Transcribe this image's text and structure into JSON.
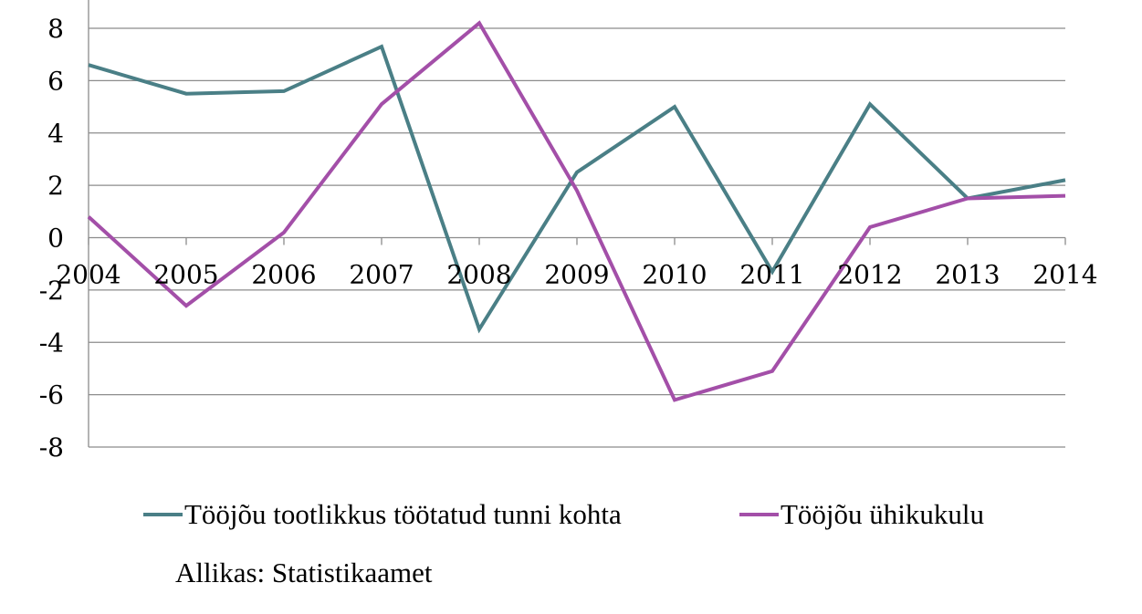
{
  "chart_data": {
    "type": "line",
    "title": "",
    "xlabel": "",
    "ylabel": "",
    "x": [
      "2004",
      "2005",
      "2006",
      "2007",
      "2008",
      "2009",
      "2010",
      "2011",
      "2012",
      "2013",
      "2014"
    ],
    "ylim": [
      -8,
      8
    ],
    "yticks": [
      8,
      6,
      4,
      2,
      0,
      -2,
      -4,
      -6,
      -8
    ],
    "grid": true,
    "legend_position": "bottom",
    "series": [
      {
        "name": "Tööjõu tootlikkus töötatud tunni kohta",
        "color": "#4a7f86",
        "values": [
          6.6,
          5.5,
          5.6,
          7.3,
          -3.5,
          2.5,
          5.0,
          -1.3,
          5.1,
          1.5,
          2.2
        ]
      },
      {
        "name": "Tööjõu ühikukulu",
        "color": "#a34fa8",
        "values": [
          0.8,
          -2.6,
          0.2,
          5.1,
          8.2,
          1.8,
          -6.2,
          -5.1,
          0.4,
          1.5,
          1.6
        ]
      }
    ],
    "source": "Allikas: Statistikaamet"
  }
}
